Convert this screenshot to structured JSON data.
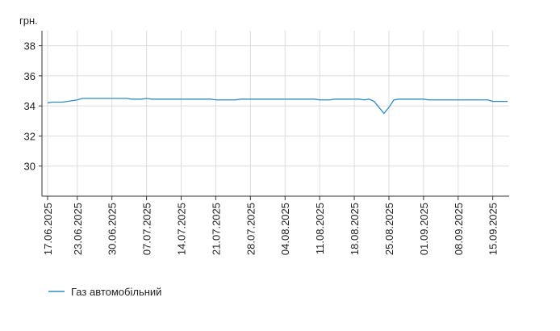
{
  "chart_data": {
    "type": "line",
    "y_label": "грн.",
    "categories": [
      "17.06.2025",
      null,
      null,
      null,
      null,
      null,
      "23.06.2025",
      null,
      null,
      null,
      null,
      null,
      null,
      "30.06.2025",
      null,
      null,
      null,
      null,
      null,
      null,
      "07.07.2025",
      null,
      null,
      null,
      null,
      null,
      null,
      "14.07.2025",
      null,
      null,
      null,
      null,
      null,
      null,
      "21.07.2025",
      null,
      null,
      null,
      null,
      null,
      null,
      "28.07.2025",
      null,
      null,
      null,
      null,
      null,
      null,
      "04.08.2025",
      null,
      null,
      null,
      null,
      null,
      null,
      "11.08.2025",
      null,
      null,
      null,
      null,
      null,
      null,
      "18.08.2025",
      null,
      null,
      null,
      null,
      null,
      null,
      "25.08.2025",
      null,
      null,
      null,
      null,
      null,
      null,
      "01.09.2025",
      null,
      null,
      null,
      null,
      null,
      null,
      "08.09.2025",
      null,
      null,
      null,
      null,
      null,
      null,
      "15.09.2025",
      null,
      null,
      null
    ],
    "series": [
      {
        "name": "Газ автомобільний",
        "color": "#2a8cc7",
        "values": [
          34.2,
          34.25,
          34.25,
          34.25,
          34.3,
          34.35,
          34.4,
          34.5,
          34.5,
          34.5,
          34.5,
          34.5,
          34.5,
          34.5,
          34.5,
          34.5,
          34.5,
          34.45,
          34.45,
          34.45,
          34.5,
          34.45,
          34.45,
          34.45,
          34.45,
          34.45,
          34.45,
          34.45,
          34.45,
          34.45,
          34.45,
          34.45,
          34.45,
          34.45,
          34.4,
          34.4,
          34.4,
          34.4,
          34.4,
          34.45,
          34.45,
          34.45,
          34.45,
          34.45,
          34.45,
          34.45,
          34.45,
          34.45,
          34.45,
          34.45,
          34.45,
          34.45,
          34.45,
          34.45,
          34.45,
          34.4,
          34.4,
          34.4,
          34.45,
          34.45,
          34.45,
          34.45,
          34.45,
          34.45,
          34.4,
          34.45,
          34.3,
          33.9,
          33.5,
          33.9,
          34.4,
          34.45,
          34.45,
          34.45,
          34.45,
          34.45,
          34.45,
          34.4,
          34.4,
          34.4,
          34.4,
          34.4,
          34.4,
          34.4,
          34.4,
          34.4,
          34.4,
          34.4,
          34.4,
          34.4,
          34.3,
          34.3,
          34.3,
          34.3
        ]
      }
    ],
    "ylim": [
      28,
      39
    ],
    "yticks": [
      30,
      32,
      34,
      36,
      38
    ],
    "grid": true,
    "legend": "bottom-left"
  }
}
